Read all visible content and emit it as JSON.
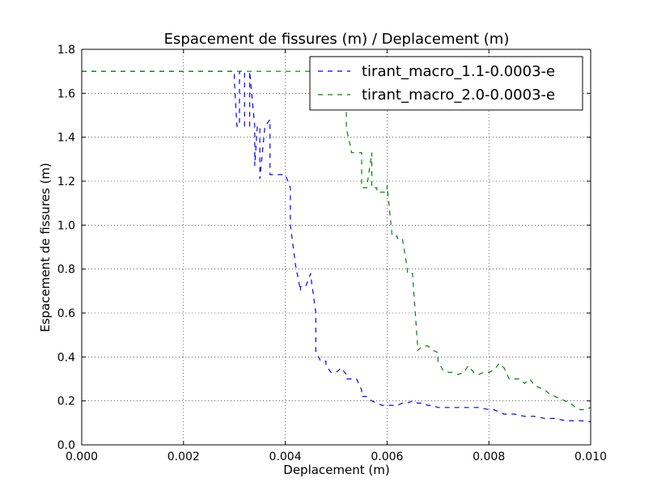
{
  "chart_data": {
    "type": "line",
    "title": "Espacement de fissures (m) / Deplacement (m)",
    "xlabel": "Deplacement (m)",
    "ylabel": "Espacement de fissures (m)",
    "xlim": [
      0.0,
      0.01
    ],
    "ylim": [
      0.0,
      1.8
    ],
    "xticks": [
      "0.000",
      "0.002",
      "0.004",
      "0.006",
      "0.008",
      "0.010"
    ],
    "yticks": [
      "0.0",
      "0.2",
      "0.4",
      "0.6",
      "0.8",
      "1.0",
      "1.2",
      "1.4",
      "1.6",
      "1.8"
    ],
    "grid": true,
    "legend_position": "top-right",
    "series": [
      {
        "name": "tirant_macro_1.1-0.0003-e",
        "color": "#0000ff",
        "style": "dashed",
        "x": [
          0.0,
          0.003,
          0.003,
          0.00305,
          0.0031,
          0.0031,
          0.0032,
          0.0032,
          0.00325,
          0.0033,
          0.0033,
          0.0034,
          0.0034,
          0.00345,
          0.0035,
          0.0035,
          0.0036,
          0.0036,
          0.0037,
          0.0037,
          0.0038,
          0.004,
          0.0041,
          0.0041,
          0.0042,
          0.0042,
          0.0043,
          0.0043,
          0.0044,
          0.0045,
          0.0045,
          0.0046,
          0.0046,
          0.0047,
          0.0048,
          0.0048,
          0.0049,
          0.005,
          0.0051,
          0.0052,
          0.0052,
          0.0053,
          0.0054,
          0.0055,
          0.0055,
          0.0056,
          0.0057,
          0.0058,
          0.0059,
          0.006,
          0.0061,
          0.0062,
          0.0063,
          0.0064,
          0.0065,
          0.0066,
          0.0067,
          0.0068,
          0.0069,
          0.007,
          0.0072,
          0.0074,
          0.0076,
          0.0078,
          0.008,
          0.0081,
          0.0082,
          0.0083,
          0.0085,
          0.0087,
          0.0089,
          0.0091,
          0.0093,
          0.0095,
          0.0098,
          0.01
        ],
        "y": [
          1.7,
          1.7,
          1.65,
          1.45,
          1.45,
          1.7,
          1.7,
          1.45,
          1.45,
          1.45,
          1.7,
          1.45,
          1.27,
          1.45,
          1.45,
          1.21,
          1.45,
          1.45,
          1.48,
          1.23,
          1.23,
          1.23,
          1.17,
          1.0,
          0.82,
          0.82,
          0.7,
          0.72,
          0.72,
          0.78,
          0.77,
          0.6,
          0.42,
          0.38,
          0.38,
          0.36,
          0.33,
          0.33,
          0.35,
          0.32,
          0.3,
          0.3,
          0.3,
          0.25,
          0.22,
          0.22,
          0.2,
          0.19,
          0.18,
          0.18,
          0.18,
          0.18,
          0.19,
          0.19,
          0.2,
          0.19,
          0.19,
          0.18,
          0.18,
          0.17,
          0.17,
          0.17,
          0.17,
          0.17,
          0.16,
          0.16,
          0.15,
          0.14,
          0.14,
          0.13,
          0.13,
          0.12,
          0.12,
          0.11,
          0.11,
          0.105
        ]
      },
      {
        "name": "tirant_macro_2.0-0.0003-e",
        "color": "#008000",
        "style": "dashed",
        "x": [
          0.0,
          0.0045,
          0.0047,
          0.0049,
          0.005,
          0.005,
          0.0051,
          0.0052,
          0.0052,
          0.0053,
          0.0053,
          0.0054,
          0.0055,
          0.0055,
          0.0056,
          0.0057,
          0.0057,
          0.0058,
          0.0058,
          0.0059,
          0.006,
          0.006,
          0.0061,
          0.0062,
          0.0062,
          0.0063,
          0.0064,
          0.0064,
          0.0065,
          0.0066,
          0.0066,
          0.0067,
          0.0068,
          0.0069,
          0.007,
          0.007,
          0.0071,
          0.0072,
          0.0073,
          0.0074,
          0.0075,
          0.0076,
          0.0077,
          0.0078,
          0.0079,
          0.008,
          0.0081,
          0.0082,
          0.0083,
          0.0084,
          0.0085,
          0.0086,
          0.0087,
          0.0088,
          0.0089,
          0.009,
          0.0091,
          0.0092,
          0.0093,
          0.0094,
          0.0095,
          0.0096,
          0.0097,
          0.0098,
          0.0099,
          0.01
        ],
        "y": [
          1.7,
          1.7,
          1.7,
          1.7,
          1.6,
          1.59,
          1.59,
          1.59,
          1.44,
          1.34,
          1.33,
          1.33,
          1.33,
          1.17,
          1.17,
          1.33,
          1.17,
          1.17,
          1.15,
          1.15,
          1.15,
          1.18,
          0.95,
          0.95,
          0.94,
          0.94,
          0.8,
          0.78,
          0.78,
          0.45,
          0.43,
          0.45,
          0.45,
          0.43,
          0.42,
          0.38,
          0.34,
          0.33,
          0.33,
          0.32,
          0.33,
          0.36,
          0.33,
          0.32,
          0.33,
          0.33,
          0.34,
          0.37,
          0.35,
          0.3,
          0.3,
          0.3,
          0.28,
          0.3,
          0.27,
          0.26,
          0.25,
          0.23,
          0.22,
          0.21,
          0.2,
          0.19,
          0.17,
          0.16,
          0.16,
          0.17
        ]
      }
    ]
  }
}
